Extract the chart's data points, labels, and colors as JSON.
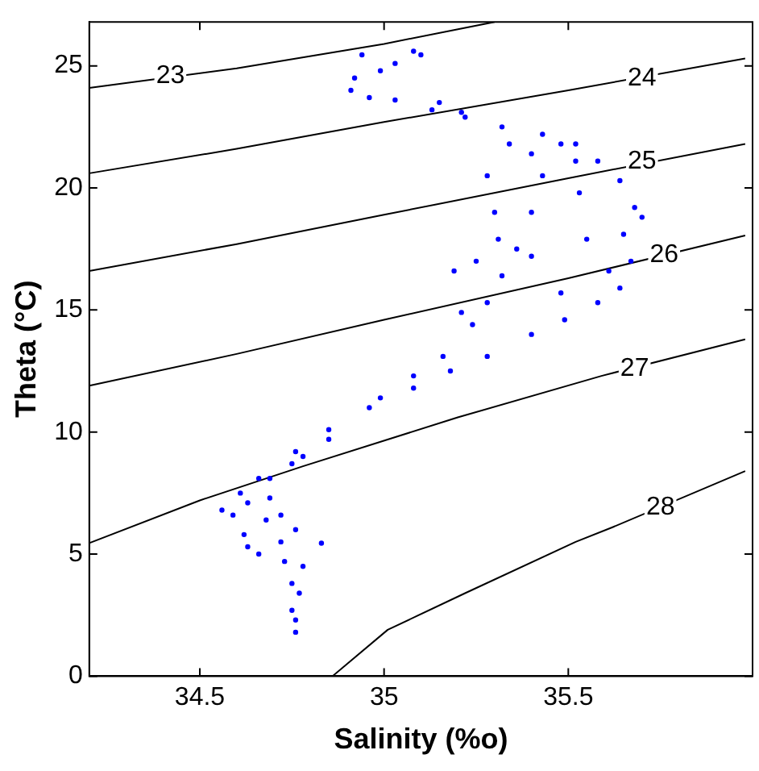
{
  "chart_data": {
    "type": "scatter",
    "xlabel": "Salinity (%o)",
    "ylabel": "Theta (°C)",
    "xlim": [
      34.2,
      36
    ],
    "ylim": [
      0,
      26.8
    ],
    "xticks": [
      34.5,
      35,
      35.5
    ],
    "yticks": [
      0,
      5,
      10,
      15,
      20,
      25
    ],
    "grid": false,
    "legend": false,
    "series": [
      {
        "type": "line",
        "color": "#000000",
        "x": [
          34.2,
          34.6,
          35.0,
          35.3
        ],
        "values": [
          24.1,
          24.9,
          25.9,
          26.8
        ]
      },
      {
        "type": "line",
        "color": "#000000",
        "x": [
          34.2,
          34.6,
          35.0,
          35.5,
          35.98
        ],
        "values": [
          20.6,
          21.6,
          22.7,
          24.0,
          25.3
        ]
      },
      {
        "type": "line",
        "color": "#000000",
        "x": [
          34.2,
          34.6,
          35.0,
          35.5,
          35.98
        ],
        "values": [
          16.6,
          17.7,
          18.9,
          20.4,
          21.8
        ]
      },
      {
        "type": "line",
        "color": "#000000",
        "x": [
          34.2,
          34.6,
          35.0,
          35.5,
          35.98
        ],
        "values": [
          11.9,
          13.2,
          14.6,
          16.3,
          18.05
        ]
      },
      {
        "type": "line",
        "color": "#000000",
        "x": [
          34.2,
          34.5,
          34.78,
          35.2,
          35.59,
          35.98
        ],
        "values": [
          5.45,
          7.2,
          8.6,
          10.6,
          12.3,
          13.8
        ]
      },
      {
        "type": "line",
        "color": "#000000",
        "x": [
          34.86,
          35.01,
          35.22,
          35.52,
          35.62,
          35.98
        ],
        "values": [
          0,
          1.9,
          3.4,
          5.5,
          6.1,
          8.4
        ]
      },
      {
        "color": "#0000ff",
        "marker": "circle",
        "x": [
          34.94,
          35.08,
          35.1,
          35.03,
          34.91,
          34.92,
          34.96,
          35.03,
          35.13,
          35.22,
          35.32,
          35.43,
          35.52,
          35.58,
          35.64,
          35.68,
          35.7,
          35.65,
          35.67,
          35.64,
          35.58,
          35.49,
          35.4,
          35.28,
          35.18,
          35.08,
          34.96,
          34.85,
          34.76,
          34.69,
          35.48,
          35.43,
          35.4,
          35.36,
          35.32,
          35.28,
          35.24,
          35.16,
          35.08,
          34.99,
          35.3,
          35.28,
          35.31,
          35.25,
          35.21,
          35.53,
          35.55,
          35.61,
          35.48,
          35.4,
          35.52,
          35.34,
          35.4,
          35.21,
          35.15,
          34.99,
          35.19,
          34.75,
          34.66,
          34.61,
          34.56,
          34.59,
          34.63,
          34.68,
          34.72,
          34.76,
          34.72,
          34.63,
          34.62,
          34.66,
          34.73,
          34.78,
          34.75,
          34.77,
          34.75,
          34.76,
          34.76,
          34.83,
          34.69,
          34.78,
          34.85
        ],
        "values": [
          25.45,
          25.6,
          25.45,
          25.1,
          24.0,
          24.5,
          23.7,
          23.6,
          23.2,
          22.9,
          22.5,
          22.2,
          21.8,
          21.1,
          20.3,
          19.2,
          18.8,
          18.1,
          17.0,
          15.9,
          15.3,
          14.6,
          14.0,
          13.1,
          12.5,
          11.8,
          11.0,
          10.1,
          9.2,
          8.1,
          21.8,
          20.5,
          19.0,
          17.5,
          16.4,
          15.3,
          14.4,
          13.1,
          12.3,
          11.4,
          19.0,
          20.5,
          17.9,
          17.0,
          14.9,
          19.8,
          17.9,
          16.6,
          15.7,
          17.2,
          21.1,
          21.8,
          21.4,
          23.1,
          23.5,
          24.8,
          16.6,
          8.7,
          8.1,
          7.5,
          6.8,
          6.6,
          7.1,
          6.4,
          6.6,
          6.0,
          5.5,
          5.3,
          5.8,
          5.0,
          4.7,
          4.5,
          3.8,
          3.4,
          2.7,
          2.3,
          1.8,
          5.45,
          7.3,
          9.0,
          9.7
        ]
      }
    ],
    "annotations": [
      {
        "text": "23",
        "x": 34.42,
        "y": 24.6
      },
      {
        "text": "24",
        "x": 35.7,
        "y": 24.5
      },
      {
        "text": "25",
        "x": 35.7,
        "y": 21.1
      },
      {
        "text": "26",
        "x": 35.76,
        "y": 17.25
      },
      {
        "text": "27",
        "x": 35.68,
        "y": 12.6
      },
      {
        "text": "28",
        "x": 35.75,
        "y": 6.9
      }
    ]
  }
}
